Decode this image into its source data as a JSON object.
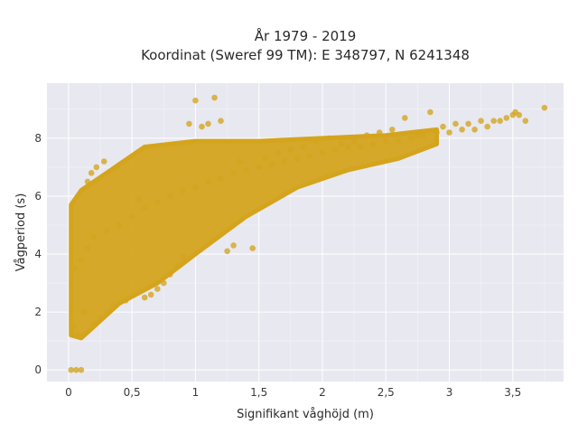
{
  "chart_data": {
    "type": "scatter",
    "title_line1": "År 1979 - 2019",
    "title_line2": "Koordinat (Sweref 99 TM): E 348797, N 6241348",
    "xlabel": "Signifikant våghöjd (m)",
    "ylabel": "Vågperiod (s)",
    "xlim": [
      -0.17,
      3.9
    ],
    "ylim": [
      -0.4,
      9.9
    ],
    "xticks": [
      0,
      0.5,
      1,
      1.5,
      2,
      2.5,
      3,
      3.5
    ],
    "xtick_labels": [
      "0",
      "0,5",
      "1",
      "1,5",
      "2",
      "2,5",
      "3",
      "3,5"
    ],
    "yticks": [
      0,
      2,
      4,
      6,
      8
    ],
    "ytick_labels": [
      "0",
      "2",
      "4",
      "6",
      "8"
    ],
    "grid": true,
    "point_color": "#d4a41d",
    "plot_background": "#e8e8f0",
    "description_points_estimated": true,
    "x": [
      0.05,
      0.1,
      0.15,
      0.2,
      0.3,
      0.4,
      0.5,
      0.6,
      0.7,
      0.8,
      0.9,
      1.0,
      1.1,
      1.2,
      1.3,
      1.4,
      1.5,
      1.6,
      1.7,
      1.8,
      1.9,
      2.0,
      2.1,
      2.2,
      2.3,
      2.4,
      2.5,
      2.6,
      2.7,
      2.8,
      2.9,
      3.0,
      3.1,
      3.2,
      3.3,
      3.4,
      3.5,
      3.6,
      3.75,
      0.02,
      0.06,
      0.1,
      0.08,
      0.04,
      0.12,
      0.95,
      1.0,
      1.05,
      1.1,
      1.15,
      1.2,
      0.85,
      0.9,
      0.8,
      0.75,
      0.7,
      0.65,
      0.6,
      1.45,
      1.3,
      1.25,
      2.65,
      2.85,
      3.05,
      3.45,
      3.52,
      3.55,
      0.2,
      0.25,
      0.3,
      0.35,
      0.45,
      0.55,
      1.35,
      1.55,
      1.65,
      1.75,
      1.85,
      1.95,
      2.05,
      2.15,
      2.25,
      2.35,
      2.45,
      2.55,
      2.75,
      2.95,
      3.15,
      3.25,
      3.35,
      0.15,
      0.18,
      0.22,
      0.28
    ],
    "y": [
      3.5,
      3.8,
      4.2,
      4.6,
      4.8,
      5.0,
      5.3,
      5.6,
      5.8,
      6.0,
      6.2,
      6.3,
      6.5,
      6.6,
      6.8,
      6.9,
      7.0,
      7.1,
      7.2,
      7.3,
      7.4,
      7.5,
      7.6,
      7.7,
      7.7,
      7.8,
      7.9,
      7.9,
      8.0,
      8.1,
      8.2,
      8.2,
      8.3,
      8.3,
      8.4,
      8.6,
      8.8,
      8.6,
      9.05,
      0.0,
      0.0,
      0.0,
      1.2,
      1.5,
      2.0,
      8.5,
      9.3,
      8.4,
      8.5,
      9.4,
      8.6,
      3.6,
      3.9,
      3.3,
      3.0,
      2.8,
      2.6,
      2.5,
      4.2,
      4.3,
      4.1,
      8.7,
      8.9,
      8.5,
      8.7,
      8.9,
      8.8,
      1.6,
      1.8,
      2.0,
      2.2,
      2.4,
      5.9,
      7.2,
      7.3,
      7.5,
      7.6,
      7.7,
      7.9,
      8.0,
      7.8,
      7.9,
      8.1,
      8.2,
      8.3,
      8.1,
      8.4,
      8.5,
      8.6,
      8.6,
      6.5,
      6.8,
      7.0,
      7.2
    ]
  }
}
